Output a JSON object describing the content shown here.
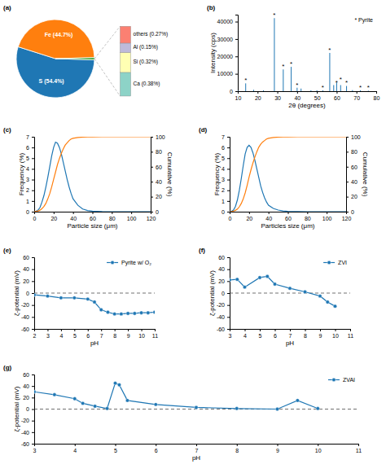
{
  "chart_data": [
    {
      "type": "pie",
      "title": "(a)",
      "values": [
        54.4,
        44.7,
        0.9
      ],
      "value_labels": [
        "S (54.4%)",
        "Fe (44.7%)",
        null
      ]
    },
    {
      "type": "bar",
      "stacked": true,
      "categories": [
        null
      ],
      "series": [
        {
          "values": [
            0.38
          ],
          "value_labels": [
            "Ca (0.38%)"
          ]
        },
        {
          "values": [
            0.32
          ],
          "value_labels": [
            "Si (0.32%)"
          ]
        },
        {
          "values": [
            0.15
          ],
          "value_labels": [
            "Al (0.15%)"
          ]
        },
        {
          "values": [
            0.27
          ],
          "value_labels": [
            "others (0.27%)"
          ]
        }
      ],
      "ylim": [
        0,
        1.176
      ],
      "tick_labels": false
    },
    {
      "type": "stem",
      "title": "(b)",
      "x": [
        10,
        14,
        18,
        23,
        28.5,
        33,
        37,
        40,
        42,
        47,
        50,
        53,
        56.5,
        58.5,
        60,
        62,
        65,
        68,
        72,
        76
      ],
      "values": [
        500,
        4500,
        800,
        500,
        42000,
        12500,
        14000,
        2000,
        1500,
        500,
        500,
        500,
        22000,
        3500,
        5000,
        3500,
        3000,
        600,
        500,
        300
      ],
      "xlim": [
        10,
        80
      ],
      "xticks": [
        10,
        20,
        30,
        40,
        50,
        60,
        70,
        80
      ],
      "ylim": [
        0,
        44000
      ],
      "yticks": [
        0,
        10000,
        20000,
        30000,
        40000
      ],
      "xlabel": "2θ (degrees)",
      "ylabel": "Intensity (cps)",
      "annotations": [
        {
          "text": "* Pyrite"
        },
        {
          "x": 14,
          "y": 4500,
          "text": "*"
        },
        {
          "x": 28.5,
          "y": 42000,
          "text": "*"
        },
        {
          "x": 33,
          "y": 12500,
          "text": "*"
        },
        {
          "x": 37,
          "y": 14000,
          "text": "*"
        },
        {
          "x": 40,
          "y": 2000,
          "text": "*"
        },
        {
          "x": 53,
          "y": 500,
          "text": "*"
        },
        {
          "x": 56.5,
          "y": 22000,
          "text": "*"
        },
        {
          "x": 60,
          "y": 3500,
          "text": "*"
        },
        {
          "x": 62,
          "y": 5000,
          "text": "*"
        },
        {
          "x": 65,
          "y": 3500,
          "text": "*"
        },
        {
          "x": 72,
          "y": 500,
          "text": "*"
        },
        {
          "x": 76,
          "y": 300,
          "text": "*"
        }
      ]
    },
    {
      "type": "line",
      "title": "(c)",
      "x": [
        0,
        2,
        4,
        6,
        8,
        10,
        12,
        14,
        16,
        18,
        20,
        22,
        24,
        26,
        28,
        30,
        32,
        34,
        36,
        38,
        40,
        45,
        50,
        55,
        60,
        70,
        80,
        100,
        120
      ],
      "series": [
        {
          "values": [
            0,
            0.05,
            0.15,
            0.4,
            0.9,
            1.5,
            2.3,
            3.2,
            4.2,
            5.2,
            6.0,
            6.5,
            6.4,
            6.0,
            5.4,
            4.6,
            3.8,
            3.0,
            2.3,
            1.7,
            1.2,
            0.6,
            0.25,
            0.1,
            0.05,
            0.01,
            0,
            0,
            0
          ]
        },
        {
          "values": [
            0,
            0.5,
            1,
            2,
            4,
            7,
            11,
            17,
            24,
            33,
            43,
            53,
            63,
            71,
            78,
            84,
            89,
            92,
            95,
            97,
            98,
            99,
            99.5,
            99.8,
            99.9,
            100,
            100,
            100,
            100
          ],
          "axis": "y2"
        }
      ],
      "xlim": [
        0,
        120
      ],
      "xticks": [
        0,
        20,
        40,
        60,
        80,
        100,
        120
      ],
      "ylim": [
        0,
        7
      ],
      "yticks": [
        0,
        1,
        2,
        3,
        4,
        5,
        6,
        7
      ],
      "y2lim": [
        0,
        100
      ],
      "y2ticks": [
        0,
        20,
        40,
        60,
        80,
        100
      ],
      "xlabel": "Particle size (μm)",
      "ylabel": "Frequency (%)",
      "y2label": "Cumulative (%)"
    },
    {
      "type": "line",
      "title": "(d)",
      "x": [
        0,
        2,
        4,
        6,
        8,
        10,
        12,
        14,
        16,
        18,
        20,
        22,
        24,
        26,
        28,
        30,
        32,
        34,
        36,
        38,
        40,
        45,
        50,
        55,
        60,
        70,
        80,
        100,
        120
      ],
      "series": [
        {
          "values": [
            0,
            0.05,
            0.15,
            0.5,
            1.1,
            2.0,
            3.1,
            4.3,
            5.4,
            6.0,
            6.2,
            6.0,
            5.5,
            4.8,
            4.0,
            3.2,
            2.4,
            1.8,
            1.3,
            0.9,
            0.6,
            0.3,
            0.15,
            0.07,
            0.03,
            0.01,
            0,
            0,
            0
          ]
        },
        {
          "values": [
            0,
            0.3,
            0.8,
            1.8,
            3.5,
            6.5,
            11,
            17,
            25,
            35,
            46,
            56,
            65,
            73,
            80,
            86,
            90,
            93,
            95,
            97,
            98,
            99,
            99.5,
            99.8,
            99.9,
            100,
            100,
            100,
            100
          ],
          "axis": "y2"
        }
      ],
      "xlim": [
        0,
        120
      ],
      "xticks": [
        0,
        20,
        40,
        60,
        80,
        100,
        120
      ],
      "ylim": [
        0,
        7
      ],
      "yticks": [
        0,
        1,
        2,
        3,
        4,
        5,
        6,
        7
      ],
      "y2lim": [
        0,
        100
      ],
      "y2ticks": [
        0,
        20,
        40,
        60,
        80,
        100
      ],
      "xlabel": "Particles size (μm)",
      "ylabel": "Frequency (%)",
      "y2label": "Cumulative (%)"
    },
    {
      "type": "line",
      "title": "(e)",
      "x": [
        2,
        3,
        4,
        5,
        6,
        6.5,
        7,
        7.5,
        8,
        8.5,
        9,
        9.5,
        10,
        10.5,
        11
      ],
      "series": [
        {
          "name": "Pyrite w/ O₂",
          "marker": "circle",
          "values": [
            -3,
            -5,
            -8,
            -8,
            -10,
            -15,
            -28,
            -32,
            -35,
            -35,
            -34,
            -34,
            -33,
            -33,
            -32
          ]
        }
      ],
      "xlim": [
        2,
        11
      ],
      "xticks": [
        2,
        3,
        4,
        5,
        6,
        7,
        8,
        9,
        10,
        11
      ],
      "ylim": [
        -60,
        60
      ],
      "yticks": [
        -60,
        -40,
        -20,
        0,
        20,
        40,
        60
      ],
      "hlines": [
        0
      ],
      "xlabel": "pH",
      "ylabel": "ζ-potential (mV)",
      "legend": "top-right"
    },
    {
      "type": "line",
      "title": "(f)",
      "x": [
        3,
        3.5,
        4,
        5,
        5.5,
        6,
        7,
        8,
        9,
        9.5,
        10
      ],
      "series": [
        {
          "name": "ZVI",
          "marker": "circle",
          "values": [
            22,
            23,
            10,
            26,
            28,
            15,
            8,
            2,
            -5,
            -15,
            -22
          ]
        }
      ],
      "xlim": [
        3,
        11
      ],
      "xticks": [
        3,
        4,
        5,
        6,
        7,
        8,
        9,
        10,
        11
      ],
      "ylim": [
        -60,
        60
      ],
      "yticks": [
        -60,
        -40,
        -20,
        0,
        20,
        40,
        60
      ],
      "hlines": [
        0
      ],
      "xlabel": "pH",
      "ylabel": "ζ-potential (mV)",
      "legend": "top-right"
    },
    {
      "type": "line",
      "title": "(g)",
      "x": [
        3,
        3.5,
        4,
        4.2,
        4.5,
        4.8,
        5.0,
        5.1,
        5.3,
        6,
        7,
        8,
        9,
        9.5,
        10
      ],
      "series": [
        {
          "name": "ZVAI",
          "marker": "circle",
          "values": [
            30,
            25,
            18,
            10,
            5,
            1,
            45,
            42,
            15,
            8,
            3,
            1,
            0,
            15,
            1
          ]
        }
      ],
      "xlim": [
        3,
        11
      ],
      "xticks": [
        3,
        4,
        5,
        6,
        7,
        8,
        9,
        10,
        11
      ],
      "ylim": [
        -60,
        60
      ],
      "yticks": [
        -60,
        -40,
        -20,
        0,
        20,
        40,
        60
      ],
      "hlines": [
        0
      ],
      "xlabel": "pH",
      "ylabel": "ζ-potential (mV)",
      "legend": "top-right"
    }
  ]
}
